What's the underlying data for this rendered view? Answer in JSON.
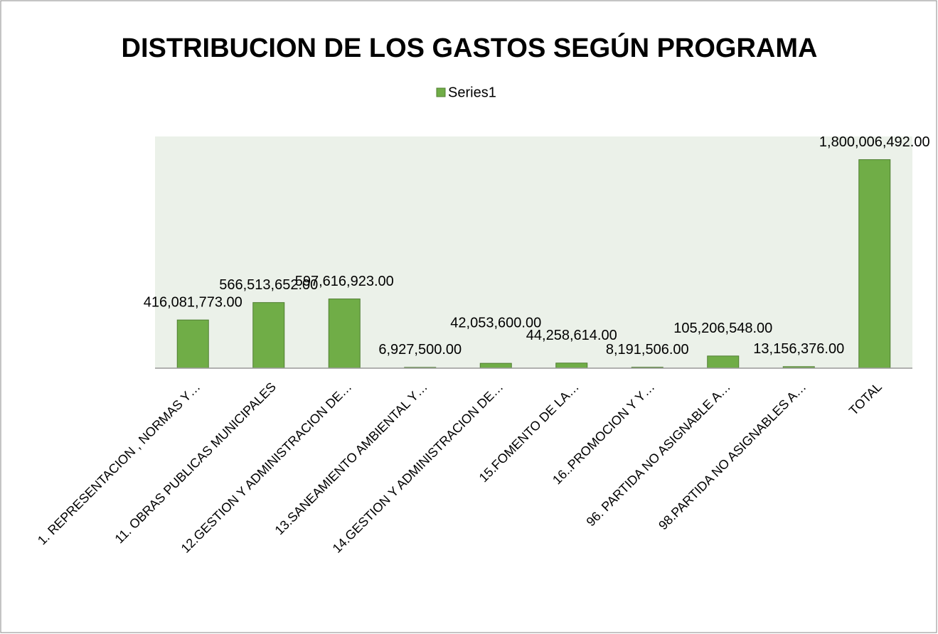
{
  "chart_data": {
    "type": "bar",
    "title": "DISTRIBUCION DE LOS GASTOS SEGÚN PROGRAMA",
    "categories": [
      "1. REPRESENTACION  , NORMAS Y…",
      "11. OBRAS PUBLICAS MUNICIPALES",
      "12.GESTION Y ADMINISTRACION  DE…",
      "13.SANEAMIENTO  AMBIENTAL Y…",
      "14.GESTION Y ADMINISTRACION  DE…",
      "15.FOMENTO DE LA…",
      "16..PROMOCION Y Y…",
      "96. PARTIDA NO ASIGNABLE A…",
      "98.PARTIDA NO ASIGNABLES A…",
      "TOTAL"
    ],
    "series": [
      {
        "name": "Series1",
        "color": "#70ad47",
        "values": [
          416081773,
          566513652,
          597616923,
          6927500,
          42053600,
          44258614,
          8191506,
          105206548,
          13156376,
          1800006492
        ],
        "value_labels": [
          "416,081,773.00",
          "566,513,652.00",
          "597,616,923.00",
          "6,927,500.00",
          "42,053,600.00",
          "44,258,614.00",
          "8,191,506.00",
          "105,206,548.00",
          "13,156,376.00",
          "1,800,006,492.00"
        ]
      }
    ],
    "ylim": [
      0,
      2000000000
    ],
    "legend": "top"
  }
}
